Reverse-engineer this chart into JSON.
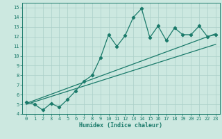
{
  "xlabel": "Humidex (Indice chaleur)",
  "ylabel": "",
  "xlim": [
    -0.5,
    23.5
  ],
  "ylim": [
    4,
    15.5
  ],
  "yticks": [
    4,
    5,
    6,
    7,
    8,
    9,
    10,
    11,
    12,
    13,
    14,
    15
  ],
  "xticks": [
    0,
    1,
    2,
    3,
    4,
    5,
    6,
    7,
    8,
    9,
    10,
    11,
    12,
    13,
    14,
    15,
    16,
    17,
    18,
    19,
    20,
    21,
    22,
    23
  ],
  "bg_color": "#cce8e0",
  "line_color": "#1a7a6a",
  "grid_color": "#aacfc8",
  "line1_x": [
    0,
    1,
    2,
    3,
    4,
    5,
    6,
    7,
    8,
    9,
    10,
    11,
    12,
    13,
    14,
    15,
    16,
    17,
    18,
    19,
    20,
    21,
    22,
    23
  ],
  "line1_y": [
    5.2,
    5.0,
    4.4,
    5.1,
    4.7,
    5.5,
    6.4,
    7.4,
    8.0,
    9.8,
    12.2,
    11.0,
    12.1,
    14.0,
    14.9,
    11.9,
    13.1,
    11.6,
    12.9,
    12.2,
    12.2,
    13.1,
    12.0,
    12.2
  ],
  "line2_x": [
    0,
    23
  ],
  "line2_y": [
    5.1,
    12.3
  ],
  "line3_x": [
    0,
    23
  ],
  "line3_y": [
    5.0,
    11.2
  ],
  "marker": "D",
  "markersize": 2.2,
  "linewidth": 0.9
}
